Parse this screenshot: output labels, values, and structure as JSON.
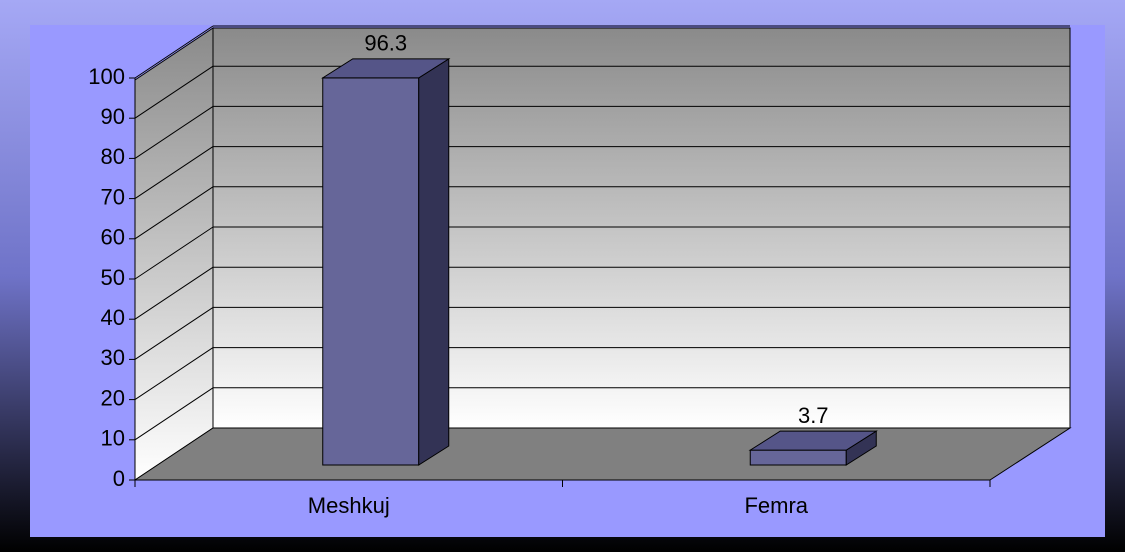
{
  "chart_data": {
    "type": "bar3d",
    "categories": [
      "Meshkuj",
      "Femra"
    ],
    "values": [
      96.3,
      3.7
    ],
    "color": "#666699",
    "ylim": [
      0,
      100
    ],
    "yticks": [
      0,
      10,
      20,
      30,
      40,
      50,
      60,
      70,
      80,
      90,
      100
    ],
    "grid": true
  }
}
